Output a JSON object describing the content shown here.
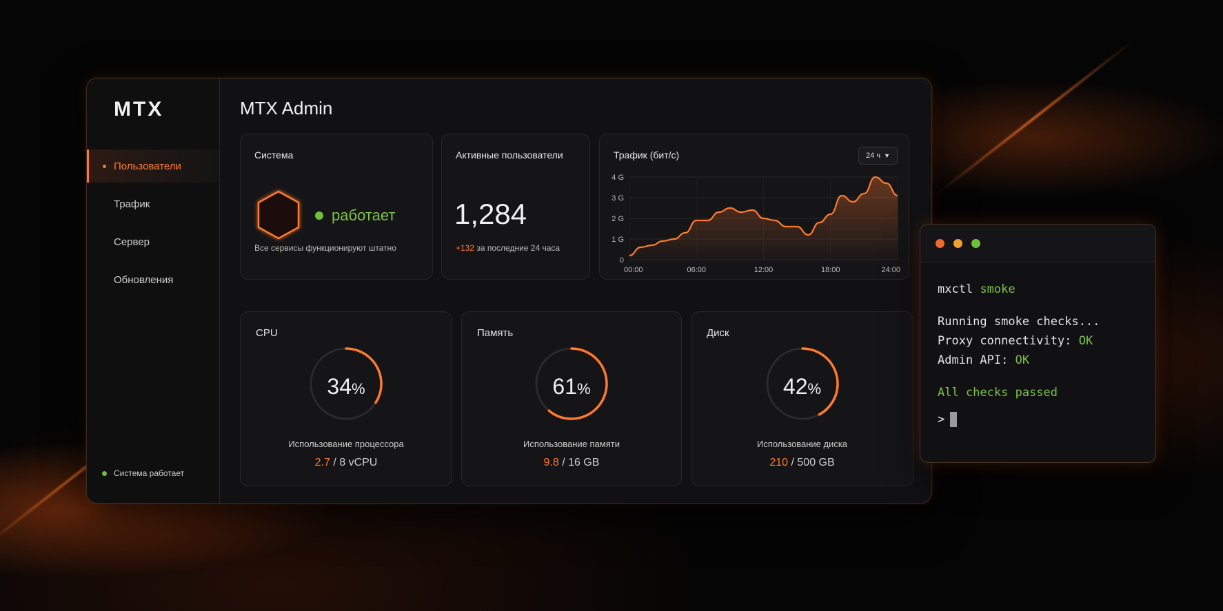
{
  "app": {
    "logo": "MTX",
    "title": "MTX Admin"
  },
  "sidebar": {
    "items": [
      {
        "label": "Пользователи",
        "active": true
      },
      {
        "label": "Трафик",
        "active": false
      },
      {
        "label": "Сервер",
        "active": false
      },
      {
        "label": "Обновления",
        "active": false
      }
    ],
    "footer_status": "Система работает"
  },
  "system_card": {
    "title": "Система",
    "status": "работает",
    "subtitle": "Все сервисы функционируют штатно"
  },
  "users_card": {
    "title": "Активные пользователи",
    "value": "1,284",
    "delta": "+132",
    "delta_text": "за последние 24 часа"
  },
  "traffic_card": {
    "title": "Трафик (бит/с)",
    "range_label": "24 ч"
  },
  "chart_data": {
    "type": "area",
    "title": "Трафик (бит/с)",
    "x_tick_labels": [
      "00:00",
      "06:00",
      "12:00",
      "18:00",
      "24:00"
    ],
    "y_tick_labels": [
      "0",
      "1 G",
      "2 G",
      "3 G",
      "4 G"
    ],
    "ylim": [
      0,
      4
    ],
    "xlim": [
      0,
      24
    ],
    "grid": true,
    "series": [
      {
        "x": [
          0,
          1,
          2,
          3,
          4,
          5,
          6,
          7,
          8,
          9,
          10,
          11,
          12,
          13,
          14,
          15,
          16,
          17,
          18,
          19,
          20,
          21,
          22,
          23,
          24
        ],
        "values": [
          0.2,
          0.6,
          0.7,
          0.9,
          1.0,
          1.3,
          1.9,
          1.9,
          2.3,
          2.5,
          2.3,
          2.4,
          2.0,
          1.9,
          1.6,
          1.6,
          1.2,
          1.8,
          2.2,
          3.1,
          2.8,
          3.2,
          4.0,
          3.7,
          3.1
        ]
      }
    ],
    "color": "#ff7a2e"
  },
  "gauges": [
    {
      "title": "CPU",
      "percent": 34,
      "value": "34",
      "unit": "%",
      "label": "Использование процессора",
      "used": "2.7",
      "total": "/ 8 vCPU"
    },
    {
      "title": "Память",
      "percent": 61,
      "value": "61",
      "unit": "%",
      "label": "Использование памяти",
      "used": "9.8",
      "total": "/ 16 GB"
    },
    {
      "title": "Диск",
      "percent": 42,
      "value": "42",
      "unit": "%",
      "label": "Использование диска",
      "used": "210",
      "total": "/ 500 GB"
    }
  ],
  "terminal": {
    "command": "mxctl",
    "command_arg": "smoke",
    "lines": [
      "Running smoke checks...",
      "Proxy connectivity: ",
      "Admin API: "
    ],
    "ok": "OK",
    "passed": "All checks passed",
    "prompt": ">"
  },
  "colors": {
    "accent": "#ff7a2e",
    "success": "#6fbf3b",
    "background": "#050505",
    "panel": "#151517"
  }
}
